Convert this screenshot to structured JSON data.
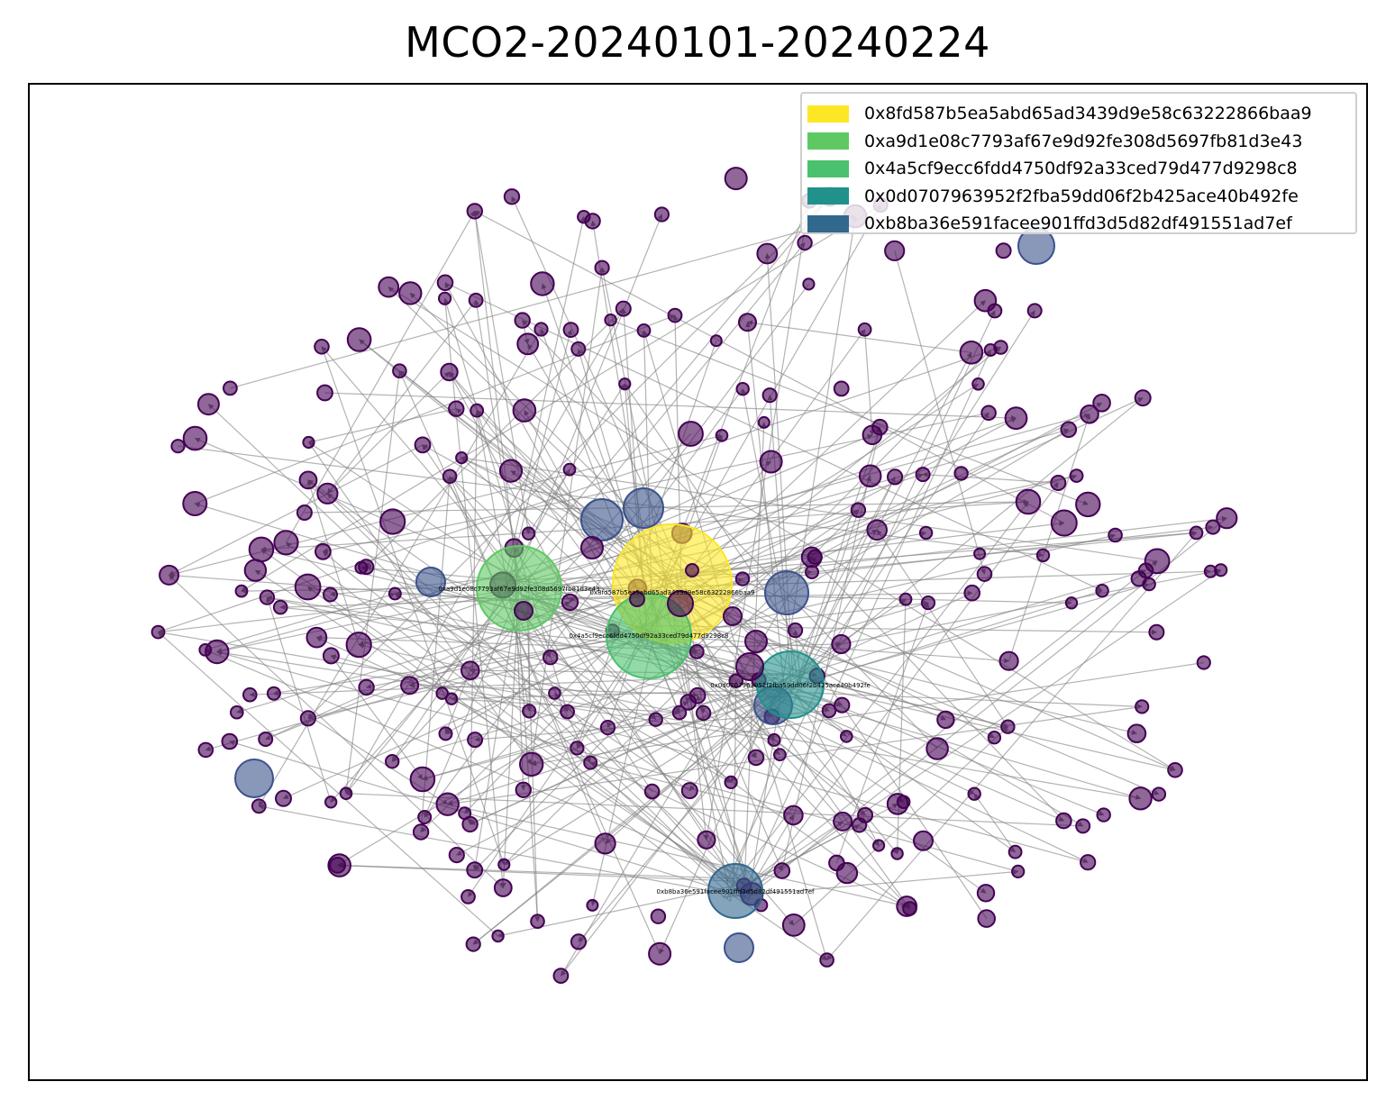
{
  "title": "MCO2-20240101-20240224",
  "legend": [
    {
      "label": "0x8fd587b5ea5abd65ad3439d9e58c63222866baa9",
      "color": "#fde725"
    },
    {
      "label": "0xa9d1e08c7793af67e9d92fe308d5697fb81d3e43",
      "color": "#5ec962"
    },
    {
      "label": "0x4a5cf9ecc6fdd4750df92a33ced79d477d9298c8",
      "color": "#4ac16d"
    },
    {
      "label": "0x0d0707963952f2fba59dd06f2b425ace40b492fe",
      "color": "#21918c"
    },
    {
      "label": "0xb8ba36e591facee901ffd3d5d82df491551ad7ef",
      "color": "#31688e"
    }
  ],
  "node_labels": [
    "0xa9d1e08c7793af67e9d92fe308d5697fb81d3e43",
    "0x8fd587b5ea5abd65ad3439d9e58c63222866baa9",
    "0x4a5cf9ecc6fdd4750df92a33ced79d477d9298c8",
    "0x0d0707963952f2fba59dd06f2b425ace40b492fe",
    "0xb8ba36e591facee901ffd3d5d82df491551ad7ef"
  ],
  "colors": {
    "small_node": "#440154",
    "medium_node": "#3b528b",
    "edge": "#808080"
  }
}
